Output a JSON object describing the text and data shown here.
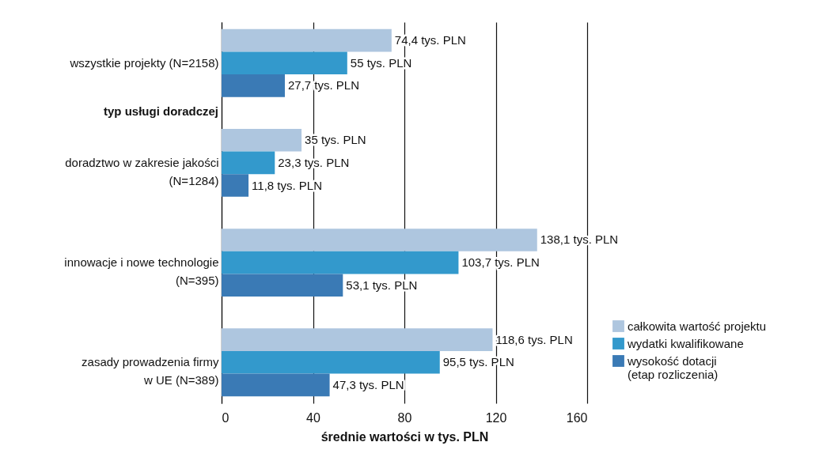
{
  "chart_data": {
    "type": "bar",
    "orientation": "horizontal",
    "xlabel": "średnie wartości w tys. PLN",
    "categories": [
      "wszystkie projekty (N=2158)",
      "doradztwo w zakresie jakości (N=1284)",
      "innowacje i nowe technologie (N=395)",
      "zasady prowadzenia firmy w UE (N=389)"
    ],
    "series": [
      {
        "name": "całkowita wartość projektu",
        "color": "#aec6df",
        "values": [
          74.4,
          35,
          138.1,
          118.6
        ],
        "value_labels": [
          "74,4 tys. PLN",
          "35 tys. PLN",
          "138,1 tys. PLN",
          "118,6 tys. PLN"
        ]
      },
      {
        "name": "wydatki kwalifikowane",
        "color": "#3399cc",
        "values": [
          55,
          23.3,
          103.7,
          95.5
        ],
        "value_labels": [
          "55 tys. PLN",
          "23,3 tys. PLN",
          "103,7 tys. PLN",
          "95,5 tys. PLN"
        ]
      },
      {
        "name": "wysokość dotacji (etap rozliczenia)",
        "color": "#3a7ab5",
        "values": [
          27.7,
          11.8,
          53.1,
          47.3
        ],
        "value_labels": [
          "27,7 tys. PLN",
          "11,8 tys. PLN",
          "53,1 tys. PLN",
          "47,3 tys. PLN"
        ]
      }
    ],
    "xlim": [
      0,
      160
    ],
    "xticks": [
      0,
      40,
      80,
      120,
      160
    ],
    "grid": "x",
    "legend": "bottom right",
    "annotations": [
      "typ usługi doradczej"
    ]
  }
}
